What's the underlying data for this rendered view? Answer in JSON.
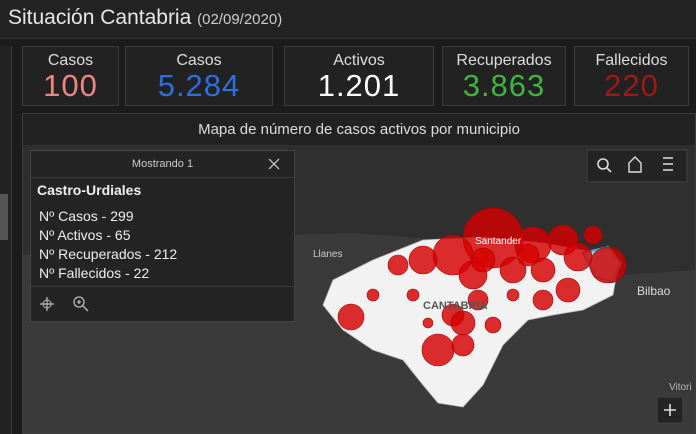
{
  "header": {
    "title": "Situación Cantabria",
    "date": "(02/09/2020)"
  },
  "indicators": [
    {
      "label": "Casos",
      "value": "100"
    },
    {
      "label": "Casos",
      "value": "5.284"
    },
    {
      "label": "Activos",
      "value": "1.201"
    },
    {
      "label": "Recuperados",
      "value": "3.863"
    },
    {
      "label": "Fallecidos",
      "value": "220"
    }
  ],
  "map": {
    "title": "Mapa de número de casos activos por municipio",
    "places": [
      "Llanes",
      "Santander",
      "CANTABRIA",
      "Bilbao",
      "Vitori"
    ],
    "popup": {
      "header": "Mostrando 1",
      "title": "Castro-Urdiales",
      "lines": [
        "Nº Casos - 299",
        "Nº Activos - 65",
        "Nº Recuperados - 212",
        "Nº Fallecidos - 22"
      ]
    }
  }
}
